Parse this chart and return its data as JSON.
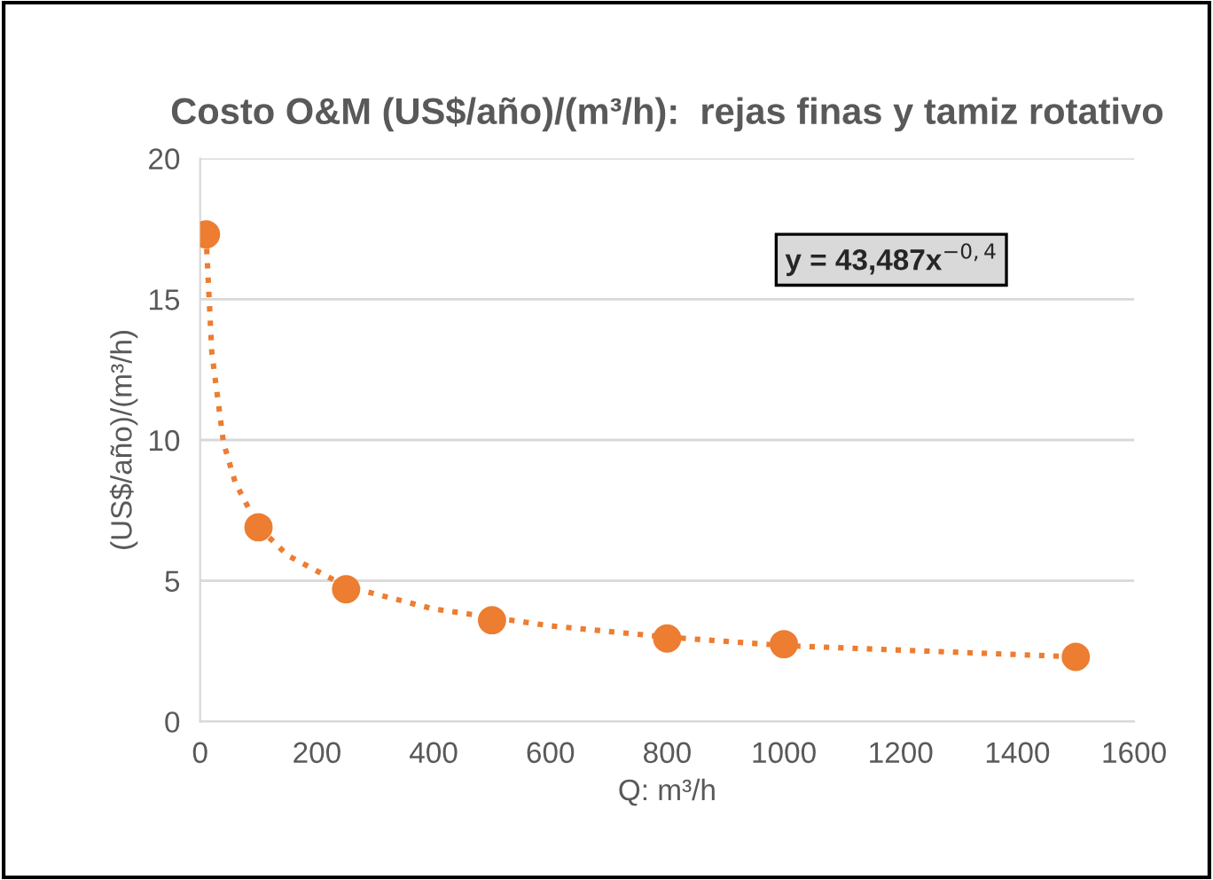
{
  "chart_data": {
    "type": "scatter",
    "title": "Costo O&M (US$/año)/(m³/h):  rejas finas y tamiz rotativo",
    "xlabel": "Q: m³/h",
    "ylabel": "(US$/año)/(m³/h)",
    "series": [
      {
        "color": "#ed7d31",
        "marker": "circle",
        "x": [
          10,
          100,
          250,
          500,
          800,
          1000,
          1500
        ],
        "values": [
          17.3,
          6.9,
          4.7,
          3.6,
          2.95,
          2.75,
          2.3
        ]
      },
      {
        "type": "line",
        "color": "#ed7d31",
        "marker": "none",
        "line_style": "dotted",
        "x": [
          10,
          20,
          40,
          60,
          100,
          150,
          250,
          400,
          600,
          800,
          1000,
          1250,
          1500
        ],
        "values": [
          17.3,
          13.1,
          9.9,
          8.5,
          6.9,
          5.9,
          4.8,
          4.0,
          3.4,
          3.0,
          2.7,
          2.5,
          2.3
        ]
      }
    ],
    "annotations": [
      "y = 43,487x$^{−0,4}$"
    ],
    "xlim": [
      0,
      1600
    ],
    "xticks": [
      0,
      200,
      400,
      600,
      800,
      1000,
      1200,
      1400,
      1600
    ],
    "ylim": [
      0,
      20
    ],
    "yticks": [
      0,
      5,
      10,
      15,
      20
    ],
    "grid": "y",
    "legend": false
  }
}
